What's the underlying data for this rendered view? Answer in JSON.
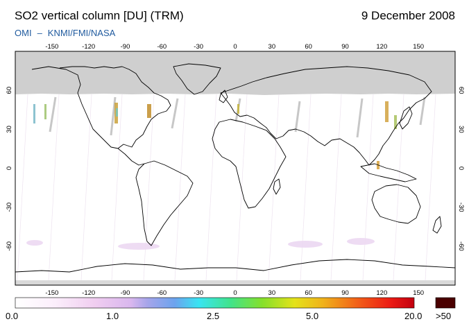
{
  "header": {
    "title": "SO2 vertical column [DU] (TRM)",
    "date": "9 December 2008",
    "credit_instrument": "OMI",
    "credit_dash": "–",
    "credit_agencies": "KNMI/FMI/NASA"
  },
  "map": {
    "projection": "equirectangular",
    "lon_ticks": [
      "-150",
      "-120",
      "-90",
      "-60",
      "-30",
      "0",
      "30",
      "60",
      "90",
      "120",
      "150"
    ],
    "lat_ticks": [
      "60",
      "30",
      "0",
      "-30",
      "-60"
    ],
    "no_data_color": "#cfcfcf",
    "land_outline_color": "#000000"
  },
  "colorbar": {
    "labels": [
      "0.0",
      "1.0",
      "2.5",
      "5.0",
      "20.0"
    ],
    "overflow_label": ">50",
    "overflow_color": "#4a0000"
  }
}
